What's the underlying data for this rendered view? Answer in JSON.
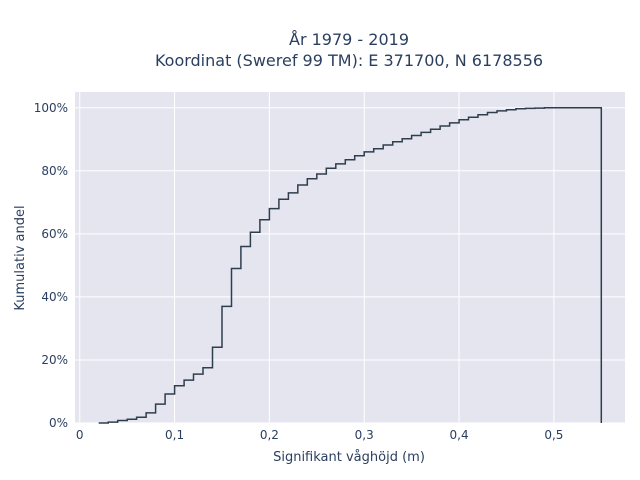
{
  "chart_data": {
    "type": "line",
    "line_shape": "step",
    "title_lines": [
      "År 1979 - 2019",
      "Koordinat (Sweref 99 TM): E 371700, N 6178556"
    ],
    "xlabel": "Signifikant våghöjd (m)",
    "ylabel": "Kumulativ andel",
    "xlim": [
      -0.005,
      0.575
    ],
    "ylim": [
      0,
      1.05
    ],
    "x_ticks": [
      0,
      0.1,
      0.2,
      0.3,
      0.4,
      0.5
    ],
    "x_tick_labels": [
      "0",
      "0,1",
      "0,2",
      "0,3",
      "0,4",
      "0,5"
    ],
    "y_ticks": [
      0,
      0.2,
      0.4,
      0.6,
      0.8,
      1.0
    ],
    "y_tick_labels": [
      "0%",
      "20%",
      "40%",
      "60%",
      "80%",
      "100%"
    ],
    "grid": true,
    "background": "#e5e5f0",
    "line_color": "#2f3e4d",
    "series": [
      {
        "x": [
          0.02,
          0.03,
          0.04,
          0.05,
          0.06,
          0.07,
          0.08,
          0.09,
          0.1,
          0.11,
          0.12,
          0.13,
          0.14,
          0.15,
          0.16,
          0.17,
          0.18,
          0.19,
          0.2,
          0.21,
          0.22,
          0.23,
          0.24,
          0.25,
          0.26,
          0.27,
          0.28,
          0.29,
          0.3,
          0.31,
          0.32,
          0.33,
          0.34,
          0.35,
          0.36,
          0.37,
          0.38,
          0.39,
          0.4,
          0.41,
          0.42,
          0.43,
          0.44,
          0.45,
          0.46,
          0.47,
          0.48,
          0.49,
          0.5,
          0.51,
          0.52,
          0.53,
          0.54,
          0.55
        ],
        "y": [
          0.0,
          0.003,
          0.008,
          0.012,
          0.018,
          0.032,
          0.06,
          0.092,
          0.118,
          0.136,
          0.155,
          0.175,
          0.24,
          0.37,
          0.49,
          0.56,
          0.605,
          0.645,
          0.68,
          0.71,
          0.73,
          0.755,
          0.775,
          0.79,
          0.808,
          0.822,
          0.835,
          0.848,
          0.86,
          0.87,
          0.882,
          0.892,
          0.902,
          0.912,
          0.922,
          0.932,
          0.942,
          0.952,
          0.962,
          0.97,
          0.978,
          0.985,
          0.99,
          0.994,
          0.997,
          0.998,
          0.999,
          1.0,
          1.0,
          1.0,
          1.0,
          1.0,
          1.0,
          1.0
        ],
        "end_drop": [
          0.55,
          0.0
        ]
      }
    ]
  }
}
